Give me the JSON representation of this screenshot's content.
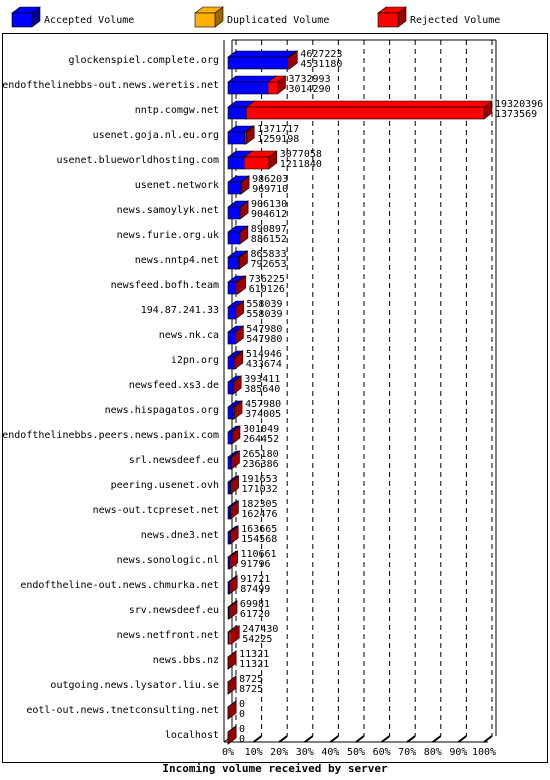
{
  "chart_data": {
    "type": "bar3d",
    "legend": "top",
    "grid": true,
    "xlabel": "Incoming volume received by server",
    "categories": [
      "glockenspiel.complete.org",
      "endofthelinebbs-out.news.weretis.net",
      "nntp.comgw.net",
      "usenet.goja.nl.eu.org",
      "usenet.blueworldhosting.com",
      "usenet.network",
      "news.samoylyk.net",
      "news.furie.org.uk",
      "news.nntp4.net",
      "newsfeed.bofh.team",
      "194.87.241.33",
      "news.nk.ca",
      "i2pn.org",
      "newsfeed.xs3.de",
      "news.hispagatos.org",
      "endofthelinebbs.peers.news.panix.com",
      "srl.newsdeef.eu",
      "peering.usenet.ovh",
      "news-out.tcpreset.net",
      "news.dne3.net",
      "news.sonologic.nl",
      "endoftheline-out.news.chmurka.net",
      "srv.newsdeef.eu",
      "news.netfront.net",
      "news.bbs.nz",
      "outgoing.news.lysator.liu.se",
      "eotl-out.news.tnetconsulting.net",
      "localhost"
    ],
    "totals": [
      4627223,
      3732993,
      19320396,
      1371717,
      3077058,
      986203,
      906130,
      890897,
      865833,
      736225,
      558039,
      547980,
      514946,
      393411,
      457980,
      301049,
      265180,
      191653,
      182305,
      163665,
      110661,
      91721,
      69981,
      247430,
      11321,
      8725,
      0,
      0
    ],
    "series": [
      {
        "name": "Accepted Volume",
        "color": "#0000ff",
        "values": [
          4531180,
          3014290,
          1373569,
          1259198,
          1211840,
          969710,
          904612,
          886152,
          792653,
          610126,
          558039,
          547980,
          433674,
          385640,
          374005,
          264452,
          236386,
          171032,
          162476,
          154568,
          91796,
          87499,
          61720,
          54225,
          11321,
          8725,
          0,
          0
        ]
      },
      {
        "name": "Duplicated Volume",
        "color": "#ffb000",
        "values": [
          0,
          0,
          0,
          0,
          0,
          0,
          0,
          0,
          0,
          0,
          0,
          0,
          0,
          0,
          0,
          0,
          0,
          0,
          0,
          0,
          18865,
          4222,
          0,
          0,
          0,
          0,
          0,
          0
        ]
      },
      {
        "name": "Rejected Volume",
        "color": "#ff0000",
        "values": [
          96043,
          718703,
          17946827,
          112519,
          1865218,
          16493,
          1518,
          4745,
          73180,
          126099,
          0,
          0,
          81272,
          7771,
          83975,
          36597,
          28794,
          20621,
          19829,
          9097,
          0,
          0,
          8261,
          193205,
          0,
          0,
          0,
          0
        ]
      }
    ],
    "xlim": [
      0,
      19320396
    ],
    "xticks": [
      {
        "value": 0,
        "label": "0%"
      },
      {
        "value": 1932039.6,
        "label": "10%"
      },
      {
        "value": 3864079.2,
        "label": "20%"
      },
      {
        "value": 5796118.8,
        "label": "30%"
      },
      {
        "value": 7728158.4,
        "label": "40%"
      },
      {
        "value": 9660198,
        "label": "50%"
      },
      {
        "value": 11592237.6,
        "label": "60%"
      },
      {
        "value": 13524277.2,
        "label": "70%"
      },
      {
        "value": 15456316.8,
        "label": "80%"
      },
      {
        "value": 17388356.4,
        "label": "90%"
      },
      {
        "value": 19320396,
        "label": "100%"
      }
    ]
  }
}
